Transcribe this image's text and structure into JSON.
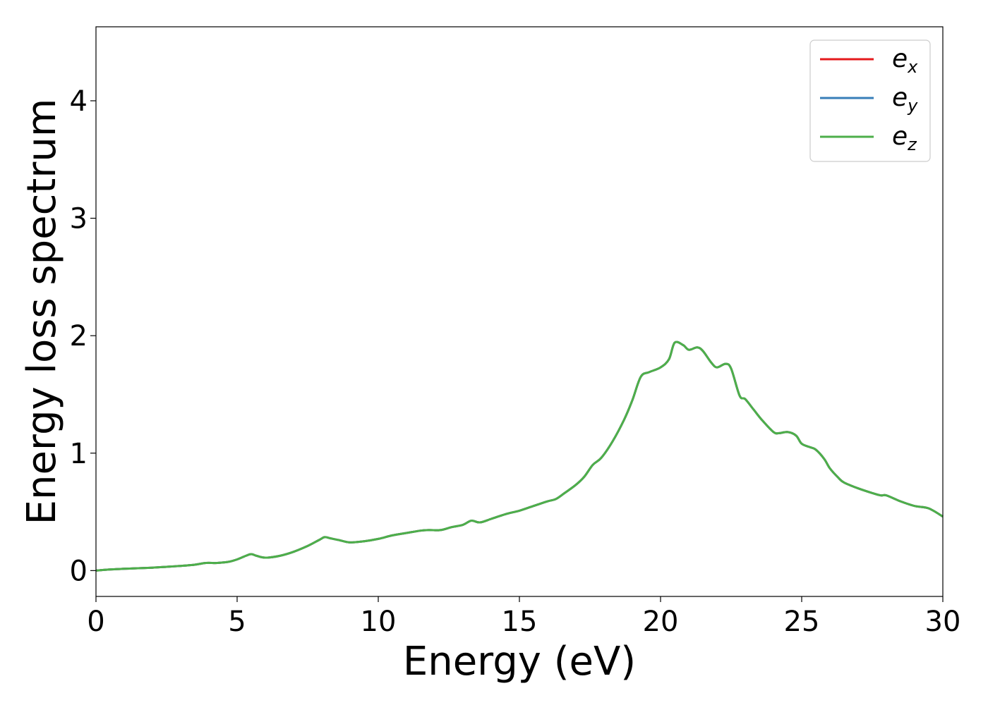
{
  "chart_data": {
    "type": "line",
    "title": "",
    "xlabel": "Energy (eV)",
    "ylabel": "Energy loss spectrum",
    "xlim": [
      0,
      30
    ],
    "ylim": [
      -0.22,
      4.63
    ],
    "xticks": [
      0,
      5,
      10,
      15,
      20,
      25,
      30
    ],
    "xtick_labels": [
      "0",
      "5",
      "10",
      "15",
      "20",
      "25",
      "30"
    ],
    "yticks": [
      0,
      1,
      2,
      3,
      4
    ],
    "ytick_labels": [
      "0",
      "1",
      "2",
      "3",
      "4"
    ],
    "grid": false,
    "legend_position": "top-right",
    "x": [
      0,
      0.5,
      1,
      1.5,
      2,
      2.5,
      3,
      3.5,
      3.9,
      4.3,
      4.7,
      5,
      5.3,
      5.5,
      5.7,
      6,
      6.5,
      7,
      7.5,
      7.9,
      8.1,
      8.3,
      8.6,
      9,
      9.5,
      10,
      10.5,
      11,
      11.5,
      11.8,
      12.2,
      12.6,
      13,
      13.3,
      13.6,
      14,
      14.5,
      15,
      15.5,
      16,
      16.3,
      16.6,
      17,
      17.3,
      17.6,
      17.9,
      18.3,
      18.7,
      19,
      19.3,
      19.6,
      20,
      20.3,
      20.5,
      20.8,
      21,
      21.3,
      21.5,
      21.8,
      22,
      22.3,
      22.5,
      22.8,
      23,
      23.3,
      23.6,
      24,
      24.2,
      24.5,
      24.8,
      25,
      25.3,
      25.5,
      25.8,
      26,
      26.3,
      26.5,
      27,
      27.5,
      27.8,
      28,
      28.5,
      29,
      29.5,
      30
    ],
    "series": [
      {
        "name": "e_x",
        "color": "#e41a1c",
        "values": [
          0.0,
          0.01,
          0.015,
          0.02,
          0.025,
          0.032,
          0.04,
          0.05,
          0.065,
          0.065,
          0.075,
          0.095,
          0.125,
          0.14,
          0.125,
          0.11,
          0.125,
          0.16,
          0.21,
          0.26,
          0.285,
          0.275,
          0.26,
          0.24,
          0.25,
          0.27,
          0.3,
          0.32,
          0.34,
          0.345,
          0.345,
          0.37,
          0.39,
          0.425,
          0.41,
          0.44,
          0.48,
          0.51,
          0.55,
          0.59,
          0.61,
          0.66,
          0.73,
          0.8,
          0.9,
          0.96,
          1.1,
          1.28,
          1.45,
          1.65,
          1.69,
          1.73,
          1.8,
          1.94,
          1.92,
          1.88,
          1.9,
          1.87,
          1.77,
          1.73,
          1.76,
          1.72,
          1.49,
          1.46,
          1.37,
          1.28,
          1.18,
          1.17,
          1.18,
          1.15,
          1.08,
          1.05,
          1.03,
          0.95,
          0.87,
          0.79,
          0.75,
          0.7,
          0.66,
          0.64,
          0.64,
          0.59,
          0.55,
          0.53,
          0.46
        ]
      },
      {
        "name": "e_y",
        "color": "#377eb8",
        "values": [
          0.0,
          0.01,
          0.015,
          0.02,
          0.025,
          0.032,
          0.04,
          0.05,
          0.065,
          0.065,
          0.075,
          0.095,
          0.125,
          0.14,
          0.125,
          0.11,
          0.125,
          0.16,
          0.21,
          0.26,
          0.285,
          0.275,
          0.26,
          0.24,
          0.25,
          0.27,
          0.3,
          0.32,
          0.34,
          0.345,
          0.345,
          0.37,
          0.39,
          0.425,
          0.41,
          0.44,
          0.48,
          0.51,
          0.55,
          0.59,
          0.61,
          0.66,
          0.73,
          0.8,
          0.9,
          0.96,
          1.1,
          1.28,
          1.45,
          1.65,
          1.69,
          1.73,
          1.8,
          1.94,
          1.92,
          1.88,
          1.9,
          1.87,
          1.77,
          1.73,
          1.76,
          1.72,
          1.49,
          1.46,
          1.37,
          1.28,
          1.18,
          1.17,
          1.18,
          1.15,
          1.08,
          1.05,
          1.03,
          0.95,
          0.87,
          0.79,
          0.75,
          0.7,
          0.66,
          0.64,
          0.64,
          0.59,
          0.55,
          0.53,
          0.46
        ]
      },
      {
        "name": "e_z",
        "color": "#4daf4a",
        "values": [
          0.0,
          0.01,
          0.015,
          0.02,
          0.025,
          0.032,
          0.04,
          0.05,
          0.065,
          0.065,
          0.075,
          0.095,
          0.125,
          0.14,
          0.125,
          0.11,
          0.125,
          0.16,
          0.21,
          0.26,
          0.285,
          0.275,
          0.26,
          0.24,
          0.25,
          0.27,
          0.3,
          0.32,
          0.34,
          0.345,
          0.345,
          0.37,
          0.39,
          0.425,
          0.41,
          0.44,
          0.48,
          0.51,
          0.55,
          0.59,
          0.61,
          0.66,
          0.73,
          0.8,
          0.9,
          0.96,
          1.1,
          1.28,
          1.45,
          1.65,
          1.69,
          1.73,
          1.8,
          1.94,
          1.92,
          1.88,
          1.9,
          1.87,
          1.77,
          1.73,
          1.76,
          1.72,
          1.49,
          1.46,
          1.37,
          1.28,
          1.18,
          1.17,
          1.18,
          1.15,
          1.08,
          1.05,
          1.03,
          0.95,
          0.87,
          0.79,
          0.75,
          0.7,
          0.66,
          0.64,
          0.64,
          0.59,
          0.55,
          0.53,
          0.46
        ]
      }
    ],
    "legend": [
      {
        "base": "e",
        "sub": "x"
      },
      {
        "base": "e",
        "sub": "y"
      },
      {
        "base": "e",
        "sub": "z"
      }
    ]
  }
}
